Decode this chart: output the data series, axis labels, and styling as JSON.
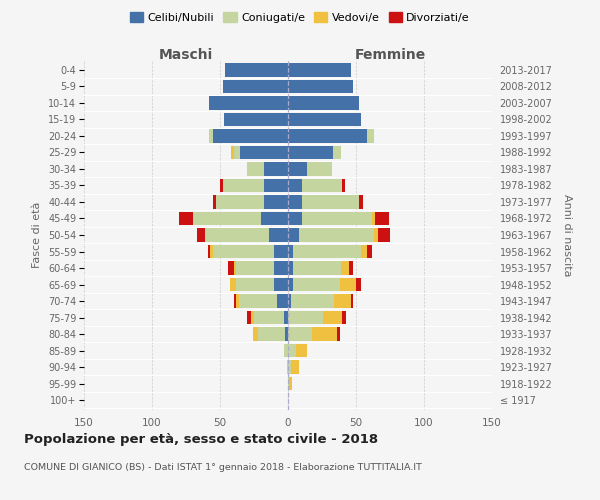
{
  "age_groups": [
    "100+",
    "95-99",
    "90-94",
    "85-89",
    "80-84",
    "75-79",
    "70-74",
    "65-69",
    "60-64",
    "55-59",
    "50-54",
    "45-49",
    "40-44",
    "35-39",
    "30-34",
    "25-29",
    "20-24",
    "15-19",
    "10-14",
    "5-9",
    "0-4"
  ],
  "birth_years": [
    "≤ 1917",
    "1918-1922",
    "1923-1927",
    "1928-1932",
    "1933-1937",
    "1938-1942",
    "1943-1947",
    "1948-1952",
    "1953-1957",
    "1958-1962",
    "1963-1967",
    "1968-1972",
    "1973-1977",
    "1978-1982",
    "1983-1987",
    "1988-1992",
    "1993-1997",
    "1998-2002",
    "2003-2007",
    "2008-2012",
    "2013-2017"
  ],
  "colors": {
    "celibe": "#4472a8",
    "coniugato": "#c5d5a0",
    "vedovo": "#f0c040",
    "divorziato": "#cc1111"
  },
  "maschi": {
    "celibe": [
      0,
      0,
      0,
      0,
      2,
      3,
      8,
      10,
      10,
      10,
      14,
      20,
      18,
      18,
      18,
      35,
      55,
      47,
      58,
      48,
      46
    ],
    "coniugato": [
      0,
      0,
      1,
      3,
      20,
      22,
      28,
      28,
      28,
      45,
      47,
      50,
      35,
      30,
      12,
      5,
      3,
      0,
      0,
      0,
      0
    ],
    "vedovo": [
      0,
      0,
      0,
      0,
      4,
      2,
      2,
      5,
      2,
      2,
      0,
      0,
      0,
      0,
      0,
      2,
      0,
      0,
      0,
      0,
      0
    ],
    "divorziato": [
      0,
      0,
      0,
      0,
      0,
      3,
      2,
      0,
      4,
      2,
      6,
      10,
      2,
      2,
      0,
      0,
      0,
      0,
      0,
      0,
      0
    ]
  },
  "femmine": {
    "nubile": [
      0,
      0,
      0,
      0,
      0,
      0,
      2,
      4,
      4,
      4,
      8,
      10,
      10,
      10,
      14,
      33,
      58,
      54,
      52,
      48,
      46
    ],
    "coniugata": [
      0,
      1,
      2,
      6,
      18,
      26,
      32,
      34,
      35,
      50,
      55,
      52,
      42,
      30,
      18,
      6,
      5,
      0,
      0,
      0,
      0
    ],
    "vedova": [
      0,
      2,
      6,
      8,
      18,
      14,
      12,
      12,
      6,
      4,
      3,
      2,
      0,
      0,
      0,
      0,
      0,
      0,
      0,
      0,
      0
    ],
    "divorziata": [
      0,
      0,
      0,
      0,
      2,
      3,
      2,
      4,
      3,
      4,
      9,
      10,
      3,
      2,
      0,
      0,
      0,
      0,
      0,
      0,
      0
    ]
  },
  "title": "Popolazione per età, sesso e stato civile - 2018",
  "subtitle": "COMUNE DI GIANICO (BS) - Dati ISTAT 1° gennaio 2018 - Elaborazione TUTTITALIA.IT",
  "xlabel_left": "Maschi",
  "xlabel_right": "Femmine",
  "ylabel_left": "Fasce di età",
  "ylabel_right": "Anni di nascita",
  "xlim": 150,
  "legend_labels": [
    "Celibi/Nubili",
    "Coniugati/e",
    "Vedovi/e",
    "Divorziati/e"
  ],
  "fig_width": 6.0,
  "fig_height": 5.0,
  "dpi": 100
}
